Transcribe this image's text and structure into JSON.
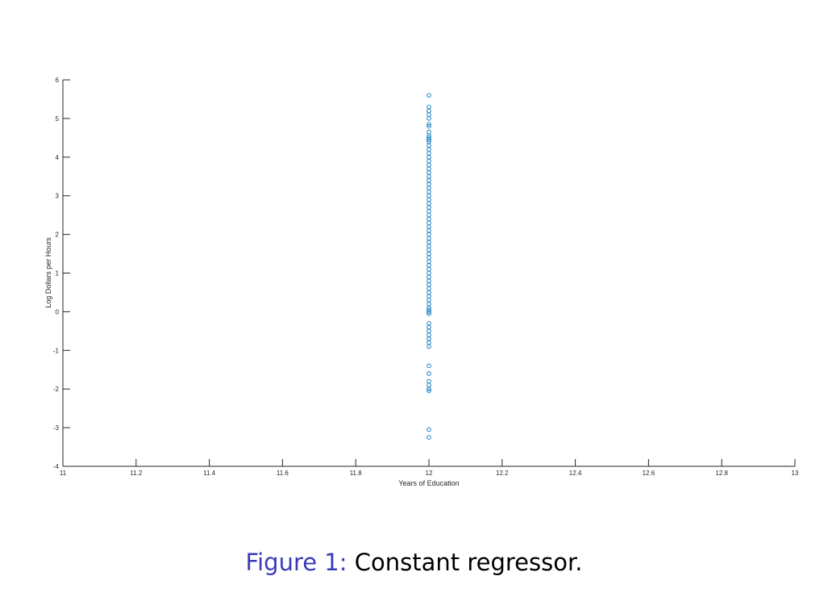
{
  "chart_data": {
    "type": "scatter",
    "title": "",
    "xlabel": "Years of Education",
    "ylabel": "Log Dollars per Hours",
    "xlim": [
      11,
      13
    ],
    "ylim": [
      -4,
      6
    ],
    "xticks": [
      "11",
      "11.2",
      "11.4",
      "11.6",
      "11.8",
      "12",
      "12.2",
      "12.4",
      "12.6",
      "12.8",
      "13"
    ],
    "yticks": [
      "-4",
      "-3",
      "-2",
      "-1",
      "0",
      "1",
      "2",
      "3",
      "4",
      "5",
      "6"
    ],
    "grid": false,
    "marker": "circle-open",
    "series": [
      {
        "color": "#0072bd",
        "x": 12,
        "y": [
          5.6,
          5.3,
          5.2,
          5.1,
          5.0,
          4.85,
          4.8,
          4.65,
          4.55,
          4.5,
          4.45,
          4.4,
          4.3,
          4.2,
          4.1,
          4.0,
          3.9,
          3.8,
          3.7,
          3.6,
          3.5,
          3.4,
          3.3,
          3.2,
          3.1,
          3.0,
          2.9,
          2.8,
          2.7,
          2.6,
          2.5,
          2.4,
          2.3,
          2.2,
          2.1,
          2.0,
          1.9,
          1.8,
          1.7,
          1.6,
          1.5,
          1.4,
          1.3,
          1.2,
          1.1,
          1.0,
          0.9,
          0.8,
          0.7,
          0.6,
          0.5,
          0.4,
          0.3,
          0.2,
          0.1,
          0.05,
          0.0,
          -0.05,
          -0.3,
          -0.4,
          -0.5,
          -0.6,
          -0.7,
          -0.8,
          -0.9,
          -1.4,
          -1.6,
          -1.8,
          -1.9,
          -2.0,
          -2.05,
          -3.05,
          -3.25
        ]
      }
    ]
  },
  "caption": {
    "prefix": "Figure 1:",
    "text": " Constant regressor."
  }
}
